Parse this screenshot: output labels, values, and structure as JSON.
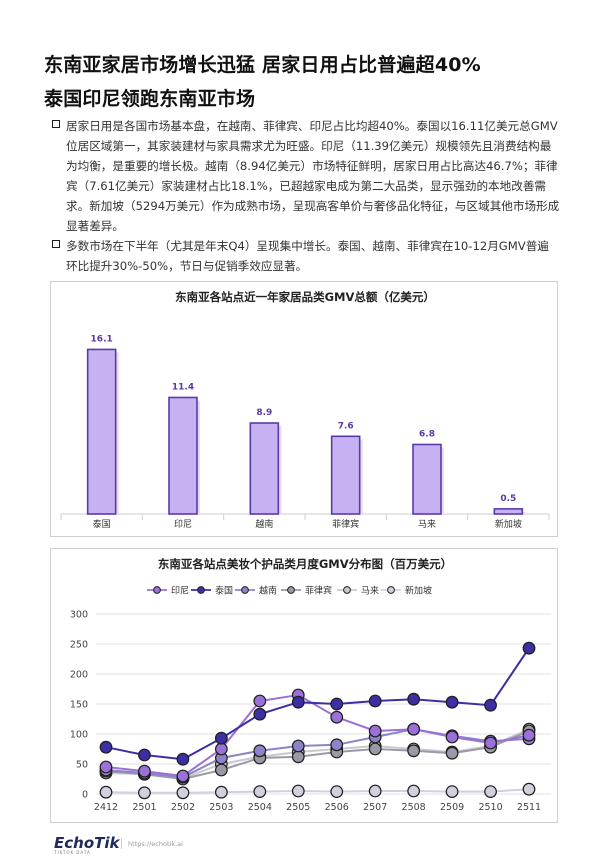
{
  "headline": {
    "line1": "东南亚家居市场增长迅猛 居家日用占比普遍超40%",
    "line2": "泰国印尼领跑东南亚市场"
  },
  "bullets": [
    "居家日用是各国市场基本盘，在越南、菲律宾、印尼占比均超40%。泰国以16.11亿美元总GMV位居区域第一，其家装建材与家具需求尤为旺盛。印尼（11.39亿美元）规模领先且消费结构最为均衡，是重要的增长极。越南（8.94亿美元）市场特征鲜明，居家日用占比高达46.7%；菲律宾（7.61亿美元）家装建材占比18.1%，已超越家电成为第二大品类，显示强劲的本地改善需求。新加坡（5294万美元）作为成熟市场，呈现高客单价与奢侈品化特征，与区域其他市场形成显著差异。",
    "多数市场在下半年（尤其是年末Q4）呈现集中增长。泰国、越南、菲律宾在10-12月GMV普遍环比提升30%-50%，节日与促销季效应显著。"
  ],
  "chart_data": [
    {
      "type": "bar",
      "title": "东南亚各站点近一年家居品类GMV总额（亿美元）",
      "categories": [
        "泰国",
        "印尼",
        "越南",
        "菲律宾",
        "马来",
        "新加坡"
      ],
      "values": [
        16.1,
        11.4,
        8.9,
        7.6,
        6.8,
        0.5
      ],
      "value_labels": [
        "16.1",
        "11.4",
        "8.9",
        "7.6",
        "6.8",
        "0.5"
      ],
      "ylim": [
        0,
        18
      ],
      "bar_color": "#c6b2f2",
      "bar_edge_color": "#5a3aa6",
      "grid": false
    },
    {
      "type": "line",
      "title": "东南亚各站点美妆个护品类月度GMV分布图（百万美元）",
      "x": [
        "2412",
        "2501",
        "2502",
        "2503",
        "2504",
        "2505",
        "2506",
        "2507",
        "2508",
        "2509",
        "2510",
        "2511"
      ],
      "yticks": [
        "300",
        "250",
        "200",
        "150",
        "100",
        "50",
        "0"
      ],
      "ylim": [
        0,
        300
      ],
      "grid": true,
      "legend_position": "top",
      "series": [
        {
          "name": "印尼",
          "color": "#9b70d8",
          "values": [
            45,
            38,
            30,
            75,
            155,
            165,
            128,
            105,
            108,
            95,
            85,
            98
          ]
        },
        {
          "name": "泰国",
          "color": "#3b2fa3",
          "values": [
            78,
            65,
            58,
            93,
            133,
            153,
            150,
            155,
            158,
            153,
            148,
            243
          ]
        },
        {
          "name": "越南",
          "color": "#8c84c8",
          "values": [
            40,
            35,
            28,
            60,
            72,
            80,
            82,
            95,
            108,
            97,
            88,
            92
          ]
        },
        {
          "name": "菲律宾",
          "color": "#9a9aa6",
          "values": [
            38,
            33,
            25,
            40,
            60,
            62,
            70,
            75,
            72,
            68,
            78,
            105
          ]
        },
        {
          "name": "马来",
          "color": "#c9c9cf",
          "values": [
            35,
            33,
            26,
            50,
            62,
            70,
            75,
            80,
            75,
            70,
            80,
            108
          ]
        },
        {
          "name": "新加坡",
          "color": "#d4cfdd",
          "values": [
            3,
            2,
            2,
            3,
            4,
            5,
            4,
            5,
            5,
            4,
            4,
            8
          ]
        }
      ]
    }
  ],
  "footer": {
    "logo_text": "EchoTik",
    "logo_sub": "TIKTOK DATA",
    "url": "https://echotik.ai"
  }
}
